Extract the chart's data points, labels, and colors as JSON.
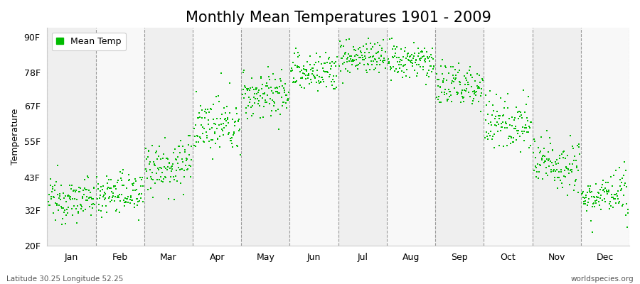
{
  "title": "Monthly Mean Temperatures 1901 - 2009",
  "ylabel": "Temperature",
  "xlabel_months": [
    "Jan",
    "Feb",
    "Mar",
    "Apr",
    "May",
    "Jun",
    "Jul",
    "Aug",
    "Sep",
    "Oct",
    "Nov",
    "Dec"
  ],
  "yticks": [
    20,
    32,
    43,
    55,
    67,
    78,
    90
  ],
  "ytick_labels": [
    "20F",
    "32F",
    "43F",
    "55F",
    "67F",
    "78F",
    "90F"
  ],
  "ylim": [
    20,
    93
  ],
  "dot_color": "#00bb00",
  "background_color": "#ffffff",
  "band_color_light": "#efefef",
  "band_color_white": "#f8f8f8",
  "grid_color": "#999999",
  "title_fontsize": 15,
  "label_fontsize": 9,
  "footer_left": "Latitude 30.25 Longitude 52.25",
  "footer_right": "worldspecies.org",
  "legend_label": "Mean Temp",
  "num_years": 109,
  "monthly_means_F": [
    35.5,
    37.5,
    47.0,
    60.0,
    70.5,
    78.0,
    83.0,
    81.5,
    73.5,
    61.0,
    47.5,
    36.5
  ],
  "monthly_stds_F": [
    3.5,
    3.5,
    4.5,
    4.5,
    4.0,
    3.5,
    3.0,
    3.0,
    4.0,
    4.5,
    4.5,
    3.5
  ],
  "monthly_trend_F": [
    0.003,
    0.003,
    0.004,
    0.004,
    0.003,
    0.003,
    0.003,
    0.003,
    0.004,
    0.004,
    0.004,
    0.003
  ]
}
